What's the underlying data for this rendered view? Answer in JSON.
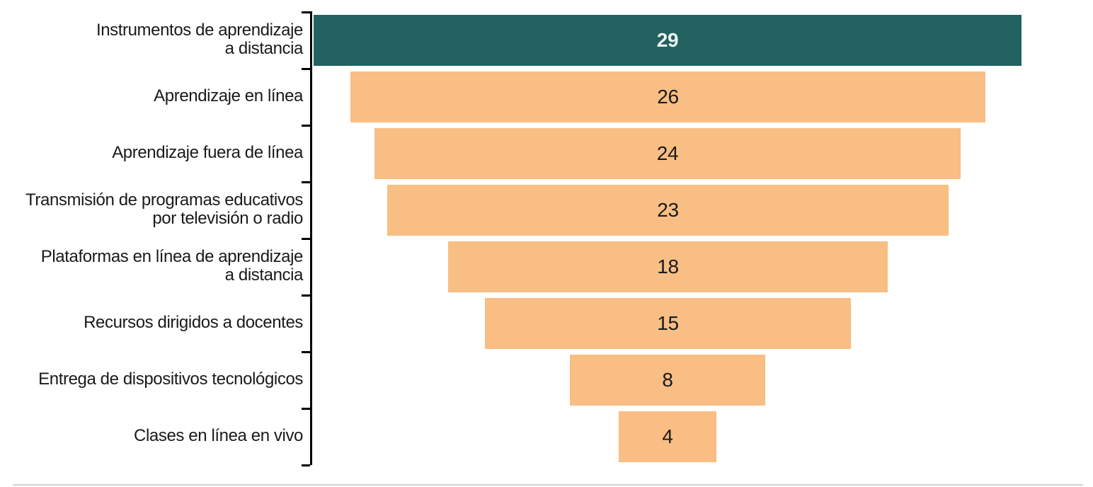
{
  "chart": {
    "background": "#ffffff",
    "colors": {
      "highlight_bar": "#216160",
      "bar": "#f8be84",
      "value_on_highlight": "#eef5f2",
      "value_on_bar": "#1a1a1a",
      "category_label": "#1a1a1a",
      "axis": "#000000",
      "bottom_artifact": "#d2d2d2"
    }
  },
  "chart_data": {
    "type": "bar",
    "orientation": "horizontal",
    "bar_alignment": "center-funnel",
    "title": "",
    "xlabel": "",
    "ylabel": "",
    "xlim": [
      0,
      29
    ],
    "grid": false,
    "legend": false,
    "value_labels_shown": true,
    "highlight_index": 0,
    "categories": [
      "Instrumentos de aprendizaje a distancia",
      "Aprendizaje en línea",
      "Aprendizaje fuera de línea",
      "Transmisión de programas educativos por televisión o radio",
      "Plataformas en línea de aprendizaje a distancia",
      "Recursos dirigidos a docentes",
      "Entrega de dispositivos tecnológicos",
      "Clases en línea en vivo"
    ],
    "category_lines": [
      [
        "Instrumentos de aprendizaje",
        "a distancia"
      ],
      [
        "Aprendizaje en línea"
      ],
      [
        "Aprendizaje fuera de línea"
      ],
      [
        "Transmisión de programas educativos",
        "por televisión o radio"
      ],
      [
        "Plataformas en línea de aprendizaje",
        "a distancia"
      ],
      [
        "Recursos dirigidos a docentes"
      ],
      [
        "Entrega de dispositivos tecnológicos"
      ],
      [
        "Clases en línea en vivo"
      ]
    ],
    "values": [
      29,
      26,
      24,
      23,
      18,
      15,
      8,
      4
    ],
    "value_labels": [
      "29",
      "26",
      "24",
      "23",
      "18",
      "15",
      "8",
      "4"
    ]
  }
}
